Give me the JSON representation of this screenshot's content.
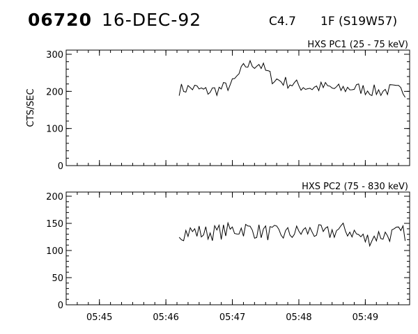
{
  "header": {
    "event_id": "06720",
    "date": "16-DEC-92",
    "goes_class": "C4.7",
    "location": "1F (S19W57)"
  },
  "chart_data": [
    {
      "type": "line",
      "title": "HXS PC1 (25 - 75 keV)",
      "ylabel": "CTS/SEC",
      "xlabel": "",
      "ylim": [
        0,
        300
      ],
      "yticks": [
        0,
        100,
        200,
        300
      ],
      "xlim": [
        "05:44:30",
        "05:49:40"
      ],
      "xticks": [
        "05:45",
        "05:46",
        "05:47",
        "05:48",
        "05:49"
      ],
      "xtick_labels_shown": false,
      "series": [
        {
          "x": [
            "05:46:12",
            "05:46:24",
            "05:46:36",
            "05:46:48",
            "05:47:00",
            "05:47:12",
            "05:47:24",
            "05:47:36",
            "05:47:48",
            "05:48:00",
            "05:48:12",
            "05:48:24",
            "05:48:36",
            "05:48:48",
            "05:49:00",
            "05:49:12",
            "05:49:24",
            "05:49:36"
          ],
          "y": [
            205,
            210,
            200,
            205,
            220,
            270,
            275,
            235,
            225,
            215,
            210,
            212,
            205,
            210,
            205,
            200,
            205,
            200
          ]
        }
      ]
    },
    {
      "type": "line",
      "title": "HXS PC2 (75 - 830 keV)",
      "ylabel": "",
      "xlabel": "",
      "ylim": [
        0,
        200
      ],
      "yticks": [
        0,
        50,
        100,
        150,
        200
      ],
      "xlim": [
        "05:44:30",
        "05:49:40"
      ],
      "xticks": [
        "05:45",
        "05:46",
        "05:47",
        "05:48",
        "05:49"
      ],
      "xtick_labels_shown": true,
      "series": [
        {
          "x": [
            "05:46:12",
            "05:46:24",
            "05:46:36",
            "05:46:48",
            "05:47:00",
            "05:47:12",
            "05:47:24",
            "05:47:36",
            "05:47:48",
            "05:48:00",
            "05:48:12",
            "05:48:24",
            "05:48:36",
            "05:48:48",
            "05:49:00",
            "05:49:12",
            "05:49:24",
            "05:49:36"
          ],
          "y": [
            132,
            135,
            132,
            134,
            138,
            140,
            135,
            132,
            130,
            134,
            136,
            130,
            138,
            135,
            120,
            128,
            130,
            132
          ]
        }
      ]
    }
  ]
}
